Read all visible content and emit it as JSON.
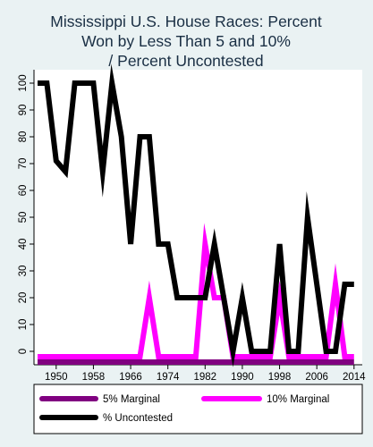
{
  "chart_data": {
    "type": "line",
    "title_lines": [
      "Mississippi U.S. House Races: Percent",
      "Won by Less Than 5 and 10%",
      "/ Percent Uncontested"
    ],
    "xlabel": "",
    "ylabel": "",
    "xlim": [
      1946,
      2015
    ],
    "ylim": [
      -5,
      105
    ],
    "x_ticks": [
      1950,
      1958,
      1966,
      1974,
      1982,
      1990,
      1998,
      2006,
      2014
    ],
    "y_ticks": [
      0,
      10,
      20,
      30,
      40,
      50,
      60,
      70,
      80,
      90,
      100
    ],
    "grid": false,
    "legend_position": "bottom",
    "series": [
      {
        "name": "5% Marginal",
        "color": "#800080",
        "x": [
          1946,
          2014
        ],
        "y": [
          -4,
          -4
        ]
      },
      {
        "name": "10% Marginal",
        "color": "#ff00ff",
        "x": [
          1946,
          1968,
          1970,
          1972,
          1974,
          1976,
          1978,
          1980,
          1982,
          1984,
          1986,
          1988,
          1990,
          1992,
          1994,
          1996,
          1998,
          2000,
          2002,
          2004,
          2006,
          2008,
          2010,
          2012,
          2014
        ],
        "y": [
          -2,
          -2,
          20,
          -2,
          -2,
          -2,
          -2,
          -2,
          40,
          20,
          20,
          -2,
          -2,
          -2,
          -2,
          -2,
          20,
          -2,
          -2,
          -2,
          -2,
          -2,
          25,
          -2,
          -2
        ]
      },
      {
        "name": "% Uncontested",
        "color": "#000000",
        "x": [
          1946,
          1948,
          1950,
          1952,
          1954,
          1956,
          1958,
          1960,
          1962,
          1964,
          1966,
          1968,
          1970,
          1972,
          1974,
          1976,
          1978,
          1980,
          1982,
          1984,
          1986,
          1988,
          1990,
          1992,
          1994,
          1996,
          1998,
          2000,
          2002,
          2004,
          2006,
          2008,
          2010,
          2012,
          2014
        ],
        "y": [
          100,
          100,
          71,
          67,
          100,
          100,
          100,
          67,
          100,
          80,
          40,
          80,
          80,
          40,
          40,
          20,
          20,
          20,
          20,
          40,
          20,
          0,
          20,
          0,
          0,
          0,
          40,
          0,
          0,
          50,
          25,
          0,
          0,
          25,
          25
        ]
      }
    ]
  }
}
